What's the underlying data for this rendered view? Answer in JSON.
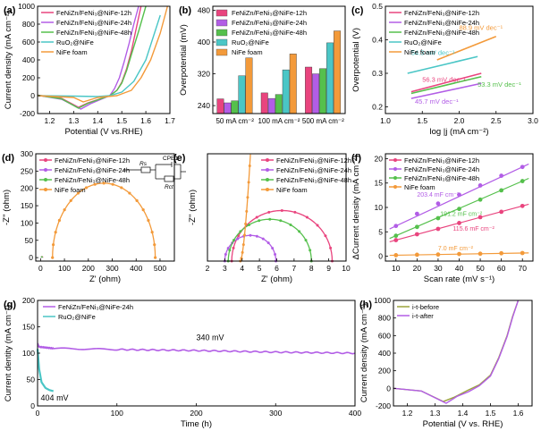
{
  "colors": {
    "nz12": "#e9447e",
    "nz24": "#b25de6",
    "nz48": "#55c04c",
    "ruo2": "#4ac6c6",
    "nife": "#f39a3a",
    "before": "#9aa33a",
    "after": "#b25de6"
  },
  "chart_data": [
    {
      "panel": "(a)",
      "type": "line",
      "xlabel": "Potential (V vs.RHE)",
      "ylabel": "Current density (mA cm⁻²)",
      "xlim": [
        1.15,
        1.7
      ],
      "ylim": [
        -200,
        1000
      ],
      "xticks": [
        "1.2",
        "1.3",
        "1.4",
        "1.5",
        "1.6",
        "1.7"
      ],
      "yticks": [
        "-200",
        "0",
        "200",
        "400",
        "600",
        "800",
        "1000"
      ],
      "legend": [
        "FeNiZn/FeNi₃@NiFe-12h",
        "FeNiZn/FeNi₃@NiFe-24h",
        "FeNiZn/FeNi₃@NiFe-48h",
        "RuO₂@NiFe",
        "NiFe foam"
      ],
      "series": [
        {
          "name": "FeNiZn/FeNi₃@NiFe-12h",
          "color": "nz12",
          "x": [
            1.15,
            1.25,
            1.32,
            1.36,
            1.45,
            1.48,
            1.5,
            1.52,
            1.54,
            1.56,
            1.58
          ],
          "y": [
            5,
            -30,
            -130,
            -80,
            0,
            60,
            150,
            300,
            500,
            750,
            1000
          ]
        },
        {
          "name": "FeNiZn/FeNi₃@NiFe-24h",
          "color": "nz24",
          "x": [
            1.15,
            1.25,
            1.33,
            1.37,
            1.45,
            1.47,
            1.49,
            1.51,
            1.53,
            1.55,
            1.57
          ],
          "y": [
            5,
            -40,
            -150,
            -90,
            0,
            80,
            200,
            380,
            580,
            800,
            1000
          ]
        },
        {
          "name": "FeNiZn/FeNi₃@NiFe-48h",
          "color": "nz48",
          "x": [
            1.15,
            1.25,
            1.32,
            1.36,
            1.45,
            1.48,
            1.5,
            1.52,
            1.54,
            1.57,
            1.6
          ],
          "y": [
            5,
            -35,
            -140,
            -85,
            0,
            60,
            140,
            280,
            460,
            720,
            1000
          ]
        },
        {
          "name": "RuO₂@NiFe",
          "color": "ruo2",
          "x": [
            1.15,
            1.3,
            1.4,
            1.45,
            1.5,
            1.55,
            1.6,
            1.63,
            1.66
          ],
          "y": [
            0,
            -5,
            -10,
            0,
            40,
            160,
            400,
            650,
            900
          ]
        },
        {
          "name": "NiFe foam",
          "color": "nife",
          "x": [
            1.15,
            1.3,
            1.34,
            1.4,
            1.48,
            1.54,
            1.58,
            1.62,
            1.66,
            1.69
          ],
          "y": [
            0,
            -20,
            -70,
            -20,
            0,
            60,
            200,
            400,
            700,
            1000
          ]
        }
      ]
    },
    {
      "panel": "(b)",
      "type": "bar",
      "ylabel": "Overpotential (mV)",
      "ylim": [
        220,
        490
      ],
      "yticks": [
        "240",
        "320",
        "400",
        "480"
      ],
      "categories": [
        "50 mA cm⁻²",
        "100 mA cm⁻²",
        "500 mA cm⁻²"
      ],
      "legend": [
        "FeNiZn/FeNi₃@NiFe-12h",
        "FeNiZn/FeNi₃@NiFe-24h",
        "FeNiZn/FeNi₃@NiFe-48h",
        "RuO₂@NiFe",
        "NiFe foam"
      ],
      "series": [
        {
          "name": "FeNiZn/FeNi₃@NiFe-12h",
          "color": "nz12",
          "values": [
            257,
            272,
            337
          ]
        },
        {
          "name": "FeNiZn/FeNi₃@NiFe-24h",
          "color": "nz24",
          "values": [
            247,
            258,
            320
          ]
        },
        {
          "name": "FeNiZn/FeNi₃@NiFe-48h",
          "color": "nz48",
          "values": [
            252,
            268,
            333
          ]
        },
        {
          "name": "RuO₂@NiFe",
          "color": "ruo2",
          "values": [
            315,
            330,
            398
          ]
        },
        {
          "name": "NiFe foam",
          "color": "nife",
          "values": [
            360,
            370,
            428
          ]
        }
      ]
    },
    {
      "panel": "(c)",
      "type": "line",
      "xlabel": "log |j (mA cm⁻²)",
      "ylabel": "Overpotential (V)",
      "xlim": [
        1.0,
        3.0
      ],
      "ylim": [
        0.18,
        0.5
      ],
      "xticks": [
        "1.0",
        "1.5",
        "2.0",
        "2.5",
        "3.0"
      ],
      "yticks": [
        "0.2",
        "0.3",
        "0.4",
        "0.5"
      ],
      "legend": [
        "FeNiZn/FeNi₃@NiFe-12h",
        "FeNiZn/FeNi₃@NiFe-24h",
        "FeNiZn/FeNi₃@NiFe-48h",
        "RuO₂@NiFe",
        "NiFe foam"
      ],
      "annotations": [
        {
          "text": "88.9 mV dec⁻¹",
          "color": "nife"
        },
        {
          "text": "54.5 mV dec⁻¹",
          "color": "ruo2"
        },
        {
          "text": "56.3 mV dec⁻¹",
          "color": "nz12"
        },
        {
          "text": "53.3 mV dec⁻¹",
          "color": "nz48"
        },
        {
          "text": "45.7 mV dec⁻¹",
          "color": "nz24"
        }
      ],
      "series": [
        {
          "name": "NiFe foam",
          "color": "nife",
          "x": [
            1.7,
            2.5
          ],
          "y": [
            0.34,
            0.41
          ]
        },
        {
          "name": "RuO₂@NiFe",
          "color": "ruo2",
          "x": [
            1.3,
            2.25
          ],
          "y": [
            0.3,
            0.35
          ]
        },
        {
          "name": "FeNiZn/FeNi₃@NiFe-12h",
          "color": "nz12",
          "x": [
            1.35,
            2.3
          ],
          "y": [
            0.245,
            0.3
          ]
        },
        {
          "name": "FeNiZn/FeNi₃@NiFe-48h",
          "color": "nz48",
          "x": [
            1.35,
            2.3
          ],
          "y": [
            0.24,
            0.29
          ]
        },
        {
          "name": "FeNiZn/FeNi₃@NiFe-24h",
          "color": "nz24",
          "x": [
            1.35,
            2.3
          ],
          "y": [
            0.225,
            0.27
          ]
        }
      ]
    },
    {
      "panel": "(d)",
      "type": "line",
      "xlabel": "Z' (ohm)",
      "ylabel": "-Z'' (ohm)",
      "xlim": [
        -20,
        560
      ],
      "ylim": [
        -10,
        300
      ],
      "xticks": [
        "0",
        "100",
        "200",
        "300",
        "400",
        "500"
      ],
      "yticks": [
        "0",
        "50",
        "100",
        "150",
        "200",
        "250",
        "300"
      ],
      "legend": [
        "FeNiZn/FeNi₃@NiFe-12h",
        "FeNiZn/FeNi₃@NiFe-24h",
        "FeNiZn/FeNi₃@NiFe-48h",
        "NiFe foam"
      ],
      "circuit_labels": [
        "Rs",
        "CPE1",
        "Rct"
      ],
      "series": [
        {
          "name": "NiFe foam",
          "color": "nife",
          "center": 265,
          "radius": 215,
          "ymax": 215
        },
        {
          "name": "FeNiZn/FeNi₃@NiFe-12h",
          "color": "nz12",
          "center": 6,
          "radius": 3,
          "ymax": 3
        },
        {
          "name": "FeNiZn/FeNi₃@NiFe-24h",
          "color": "nz24",
          "center": 4.5,
          "radius": 1.5,
          "ymax": 1.5
        },
        {
          "name": "FeNiZn/FeNi₃@NiFe-48h",
          "color": "nz48",
          "center": 5.5,
          "radius": 2.5,
          "ymax": 2.5
        }
      ]
    },
    {
      "panel": "(e)",
      "type": "line",
      "xlabel": "Z' (ohm)",
      "ylabel": "-Z'' (ohm)",
      "xlim": [
        2,
        10
      ],
      "ylim": [
        0,
        4
      ],
      "xticks": [
        "2",
        "3",
        "4",
        "5",
        "6",
        "7",
        "8",
        "9",
        "10"
      ],
      "legend": [
        "FeNiZn/FeNi₃@NiFe-12h",
        "FeNiZn/FeNi₃@NiFe-24h",
        "FeNiZn/FeNi₃@NiFe-48h",
        "NiFe foam"
      ],
      "series": [
        {
          "name": "FeNiZn/FeNi₃@NiFe-12h",
          "color": "nz12",
          "z0": 3.4,
          "z1": 9.2
        },
        {
          "name": "FeNiZn/FeNi₃@NiFe-24h",
          "color": "nz24",
          "z0": 3.0,
          "z1": 5.95
        },
        {
          "name": "FeNiZn/FeNi₃@NiFe-48h",
          "color": "nz48",
          "z0": 3.2,
          "z1": 8.0
        },
        {
          "name": "NiFe foam",
          "color": "nife",
          "z0": 3.9,
          "z1": 10.0
        }
      ]
    },
    {
      "panel": "(f)",
      "type": "scatter",
      "xlabel": "Scan rate (mV s⁻¹)",
      "ylabel": "ΔCurrent density (mA cm⁻²)",
      "xlim": [
        5,
        75
      ],
      "ylim": [
        -1,
        21
      ],
      "xticks": [
        "10",
        "20",
        "30",
        "40",
        "50",
        "60",
        "70"
      ],
      "yticks": [
        "0",
        "5",
        "10",
        "15",
        "20"
      ],
      "legend": [
        "FeNiZn/FeNi₃@NiFe-12h",
        "FeNiZn/FeNi₃@NiFe-24h",
        "FeNiZn/FeNi₃@NiFe-48h",
        "NiFe foam"
      ],
      "annotations": [
        {
          "text": "203.4 mF cm⁻²",
          "color": "nz24"
        },
        {
          "text": "191.2 mF cm⁻²",
          "color": "nz48"
        },
        {
          "text": "115.6 mF cm⁻²",
          "color": "nz12"
        },
        {
          "text": "7.0 mF cm⁻²",
          "color": "nife"
        }
      ],
      "x": [
        10,
        20,
        30,
        40,
        50,
        60,
        70
      ],
      "series": [
        {
          "name": "FeNiZn/FeNi₃@NiFe-24h",
          "color": "nz24",
          "values": [
            6.2,
            8.7,
            10.8,
            12.6,
            14.5,
            16.5,
            18.3
          ]
        },
        {
          "name": "FeNiZn/FeNi₃@NiFe-48h",
          "color": "nz48",
          "values": [
            4.2,
            6.0,
            7.8,
            9.7,
            11.6,
            13.5,
            15.4
          ]
        },
        {
          "name": "FeNiZn/FeNi₃@NiFe-12h",
          "color": "nz12",
          "values": [
            3.3,
            4.5,
            5.6,
            6.8,
            8.0,
            9.1,
            10.3
          ]
        },
        {
          "name": "NiFe foam",
          "color": "nife",
          "values": [
            0.2,
            0.3,
            0.35,
            0.45,
            0.5,
            0.6,
            0.65
          ]
        }
      ]
    },
    {
      "panel": "(g)",
      "type": "line",
      "xlabel": "Time (h)",
      "ylabel": "Current dentity (mA cm⁻²)",
      "xlim": [
        0,
        400
      ],
      "ylim": [
        0,
        200
      ],
      "xticks": [
        "0",
        "100",
        "200",
        "300",
        "400"
      ],
      "yticks": [
        "0",
        "50",
        "100",
        "150",
        "200"
      ],
      "legend": [
        "FeNiZn/FeNi₃@NiFe-24h",
        "RuO₂@NiFe"
      ],
      "annotations": [
        {
          "text": "340 mV"
        },
        {
          "text": "404 mV"
        }
      ],
      "series": [
        {
          "name": "FeNiZn/FeNi₃@NiFe-24h",
          "color": "nz24",
          "x": [
            0,
            2,
            20,
            100,
            200,
            300,
            400
          ],
          "y": [
            118,
            112,
            109,
            107,
            105,
            102,
            100
          ]
        },
        {
          "name": "RuO₂@NiFe",
          "color": "ruo2",
          "x": [
            0,
            2,
            5,
            10,
            15,
            20
          ],
          "y": [
            108,
            70,
            45,
            34,
            30,
            28
          ]
        }
      ]
    },
    {
      "panel": "(h)",
      "type": "line",
      "xlabel": "Potential (V vs. RHE)",
      "ylabel": "Current density (mA cm⁻²)",
      "xlim": [
        1.15,
        1.65
      ],
      "ylim": [
        -200,
        1000
      ],
      "xticks": [
        "1.2",
        "1.3",
        "1.4",
        "1.5",
        "1.6"
      ],
      "yticks": [
        "-200",
        "0",
        "200",
        "400",
        "600",
        "800",
        "1000"
      ],
      "legend": [
        "i-t-before",
        "i-t-after"
      ],
      "series": [
        {
          "name": "i-t-before",
          "color": "before",
          "x": [
            1.15,
            1.25,
            1.33,
            1.37,
            1.42,
            1.46,
            1.5,
            1.53,
            1.56,
            1.58,
            1.6
          ],
          "y": [
            0,
            -30,
            -150,
            -100,
            -20,
            40,
            150,
            350,
            600,
            820,
            1000
          ]
        },
        {
          "name": "i-t-after",
          "color": "after",
          "x": [
            1.15,
            1.25,
            1.34,
            1.38,
            1.42,
            1.46,
            1.5,
            1.53,
            1.56,
            1.58,
            1.6
          ],
          "y": [
            0,
            -30,
            -170,
            -90,
            -40,
            30,
            140,
            340,
            590,
            810,
            1000
          ]
        }
      ]
    }
  ]
}
